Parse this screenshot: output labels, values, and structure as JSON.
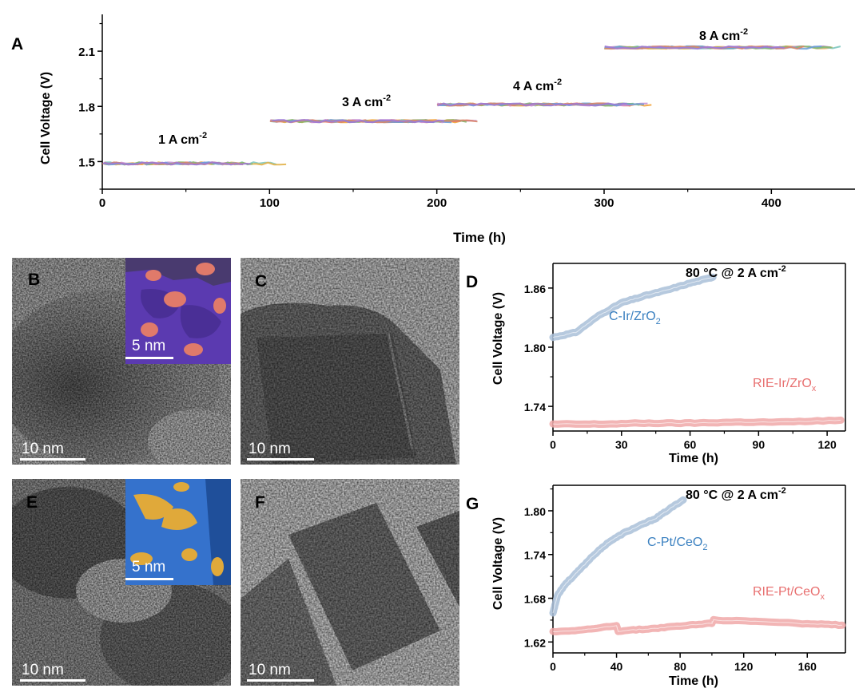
{
  "chart_data": [
    {
      "id": "A",
      "type": "line",
      "panel_label": "A",
      "xlabel": "Time (h)",
      "ylabel": "Cell Voltage (V)",
      "xlim": [
        0,
        450
      ],
      "ylim": [
        1.35,
        2.3
      ],
      "x_ticks": [
        0,
        100,
        200,
        300,
        400
      ],
      "y_ticks": [
        1.5,
        1.8,
        2.1
      ],
      "annotations": [
        "1 A cm",
        "3 A cm",
        "4 A cm",
        "8 A cm"
      ],
      "annotation_superscript": "-2",
      "segments": [
        {
          "current": "1 A cm-2",
          "x_start": 0,
          "x_end": 110,
          "voltage": 1.49
        },
        {
          "current": "3 A cm-2",
          "x_start": 100,
          "x_end": 230,
          "voltage": 1.72
        },
        {
          "current": "4 A cm-2",
          "x_start": 200,
          "x_end": 338,
          "voltage": 1.81
        },
        {
          "current": "8 A cm-2",
          "x_start": 300,
          "x_end": 442,
          "voltage": 2.12
        }
      ],
      "series_colors": [
        "#f2a33a",
        "#e8716b",
        "#7ec8c0",
        "#e2b24a",
        "#c78fd6",
        "#86b86a",
        "#6aa0d8",
        "#d8866a",
        "#9d7ad6"
      ]
    },
    {
      "id": "D",
      "type": "line",
      "panel_label": "D",
      "xlabel": "Time (h)",
      "ylabel": "Cell Voltage (V)",
      "xlim": [
        0,
        128
      ],
      "ylim": [
        1.715,
        1.885
      ],
      "x_ticks": [
        0,
        30,
        60,
        90,
        120
      ],
      "y_ticks": [
        1.74,
        1.8,
        1.86
      ],
      "condition": "80 °C @ 2 A cm",
      "condition_superscript": "-2",
      "series": [
        {
          "name": "C-Ir/ZrO",
          "subscript": "2",
          "color": "#a9bfd8",
          "label_color": "#3a80c0",
          "x": [
            0,
            10,
            20,
            30,
            40,
            50,
            60,
            70
          ],
          "y": [
            1.81,
            1.815,
            1.832,
            1.845,
            1.852,
            1.858,
            1.865,
            1.871
          ]
        },
        {
          "name": "RIE-Ir/ZrO",
          "subscript": "x",
          "color": "#f0a8a8",
          "label_color": "#e87070",
          "x": [
            0,
            20,
            40,
            60,
            80,
            100,
            126
          ],
          "y": [
            1.722,
            1.722,
            1.723,
            1.723,
            1.724,
            1.724,
            1.726
          ]
        }
      ]
    },
    {
      "id": "G",
      "type": "line",
      "panel_label": "G",
      "xlabel": "Time (h)",
      "ylabel": "Cell Voltage (V)",
      "xlim": [
        0,
        184
      ],
      "ylim": [
        1.605,
        1.835
      ],
      "x_ticks": [
        0,
        40,
        80,
        120,
        160
      ],
      "y_ticks": [
        1.62,
        1.68,
        1.74,
        1.8
      ],
      "condition": "80 °C @ 2 A cm",
      "condition_superscript": "-2",
      "series": [
        {
          "name": "C-Pt/CeO",
          "subscript": "2",
          "color": "#a9bfd8",
          "label_color": "#3a80c0",
          "x": [
            0,
            3,
            8,
            15,
            25,
            35,
            45,
            55,
            65,
            75,
            82
          ],
          "y": [
            1.66,
            1.685,
            1.7,
            1.715,
            1.738,
            1.757,
            1.77,
            1.78,
            1.79,
            1.805,
            1.815
          ]
        },
        {
          "name": "RIE-Pt/CeO",
          "subscript": "x",
          "color": "#f0a8a8",
          "label_color": "#e87070",
          "x": [
            0,
            20,
            40,
            41,
            60,
            80,
            100,
            101,
            130,
            160,
            182
          ],
          "y": [
            1.634,
            1.637,
            1.642,
            1.635,
            1.638,
            1.642,
            1.646,
            1.65,
            1.648,
            1.645,
            1.643
          ]
        }
      ]
    }
  ],
  "micrographs": [
    {
      "label": "B",
      "scale_text": "10 nm",
      "inset_scale_text": "5 nm"
    },
    {
      "label": "C",
      "scale_text": "10 nm"
    },
    {
      "label": "E",
      "scale_text": "10 nm",
      "inset_scale_text": "5 nm"
    },
    {
      "label": "F",
      "scale_text": "10 nm"
    }
  ]
}
